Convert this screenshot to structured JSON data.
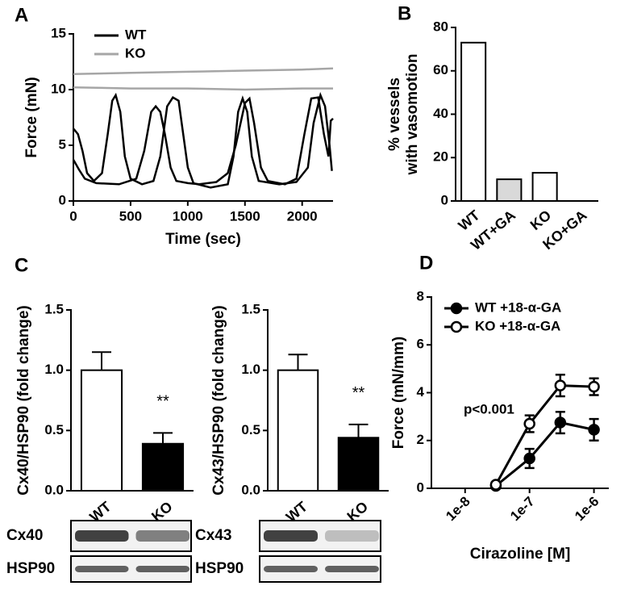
{
  "chart_data": [
    {
      "type": "line",
      "panel_label": "A",
      "xlabel": "Time (sec)",
      "ylabel": "Force (mN)",
      "xlim": [
        0,
        2270
      ],
      "xticks": [
        0,
        500,
        1000,
        1500,
        2000
      ],
      "ylim": [
        0,
        15
      ],
      "yticks": [
        0,
        5,
        10,
        15
      ],
      "legend": "top-left",
      "series": [
        {
          "name": "WT",
          "color": "#000000",
          "x": [
            0,
            40,
            80,
            120,
            180,
            250,
            300,
            340,
            370,
            410,
            450,
            500,
            600,
            700,
            760,
            820,
            870,
            920,
            960,
            1000,
            1050,
            1200,
            1350,
            1400,
            1440,
            1480,
            1520,
            1560,
            1620,
            1800,
            1950,
            2050,
            2100,
            2160,
            2200,
            2240,
            2260
          ],
          "values": [
            6.5,
            6,
            4.5,
            2.5,
            1.8,
            2.5,
            6,
            9,
            9.5,
            8,
            4,
            2,
            1.5,
            1.8,
            4,
            8.5,
            9.3,
            9,
            6,
            3,
            1.6,
            1.2,
            1.5,
            4,
            8,
            9.2,
            8,
            4,
            1.8,
            1.5,
            1.7,
            3,
            7,
            9.5,
            8.5,
            5,
            2.7
          ]
        },
        {
          "color": "#000000",
          "x": [
            0,
            50,
            100,
            200,
            400,
            550,
            620,
            680,
            720,
            760,
            800,
            850,
            900,
            1000,
            1100,
            1250,
            1350,
            1420,
            1500,
            1540,
            1580,
            1640,
            1700,
            1850,
            1950,
            2020,
            2080,
            2140,
            2190,
            2230,
            2250,
            2270
          ],
          "values": [
            3.7,
            2.8,
            2,
            1.6,
            1.5,
            2,
            4.5,
            8,
            8.5,
            8,
            6,
            3,
            1.8,
            1.6,
            1.5,
            1.7,
            2.5,
            5,
            8.8,
            9.2,
            7,
            3,
            1.8,
            1.5,
            2,
            6,
            9.2,
            9.3,
            6,
            4,
            7.2,
            7.4
          ]
        },
        {
          "name": "KO",
          "color": "#a6a6a6",
          "x": [
            0,
            500,
            1000,
            1500,
            2000,
            2270
          ],
          "values": [
            11.4,
            11.5,
            11.6,
            11.7,
            11.8,
            11.9
          ]
        },
        {
          "color": "#a6a6a6",
          "x": [
            0,
            500,
            1000,
            1500,
            2000,
            2270
          ],
          "values": [
            10.2,
            10.1,
            10.1,
            10,
            10.1,
            10.1
          ]
        }
      ]
    },
    {
      "type": "bar",
      "panel_label": "B",
      "ylabel": [
        "% vessels",
        "with vasomotion"
      ],
      "categories": [
        "WT",
        "WT+GA",
        "KO",
        "KO+GA"
      ],
      "values": [
        73,
        10,
        13,
        0
      ],
      "colors": [
        "#ffffff",
        "#d9d9d9",
        "#ffffff",
        "#ffffff"
      ],
      "ylim": [
        0,
        80
      ],
      "yticks": [
        0,
        20,
        40,
        60,
        80
      ]
    },
    {
      "type": "bar",
      "panel_label": "C",
      "ylabel": "Cx40/HSP90 (fold change)",
      "categories": [
        "WT",
        "KO"
      ],
      "values": [
        1.0,
        0.39
      ],
      "errors": [
        0.15,
        0.09
      ],
      "colors": [
        "#ffffff",
        "#000000"
      ],
      "annotation": "**",
      "ylim": [
        0,
        1.5
      ],
      "yticks": [
        {
          "value": 0,
          "label": "0.0"
        },
        0.5,
        {
          "value": 1,
          "label": "1.0"
        },
        1.5
      ],
      "blots": [
        "Cx40",
        "HSP90"
      ]
    },
    {
      "type": "bar",
      "ylabel": "Cx43/HSP90 (fold change)",
      "categories": [
        "WT",
        "KO"
      ],
      "values": [
        1.0,
        0.44
      ],
      "errors": [
        0.13,
        0.11
      ],
      "colors": [
        "#ffffff",
        "#000000"
      ],
      "annotation": "**",
      "ylim": [
        0,
        1.5
      ],
      "yticks": [
        {
          "value": 0,
          "label": "0.0"
        },
        0.5,
        {
          "value": 1,
          "label": "1.0"
        },
        1.5
      ],
      "blots": [
        "Cx43",
        "HSP90"
      ]
    },
    {
      "type": "line",
      "panel_label": "D",
      "xlabel": "Cirazoline [M]",
      "ylabel": "Force (mN/mm)",
      "xscale": "log",
      "xlim": [
        3e-09,
        1.7e-06
      ],
      "xticks": [
        {
          "value": 1e-08,
          "label": "1e-8"
        },
        {
          "value": 1e-07,
          "label": "1e-7"
        },
        {
          "value": 1e-06,
          "label": "1e-6"
        }
      ],
      "ylim": [
        0,
        8
      ],
      "yticks": [
        0,
        2,
        4,
        6,
        8
      ],
      "legend": "top-left",
      "annotation": "p<0.001",
      "series": [
        {
          "name": "WT +18-α-GA",
          "color": "#000000",
          "marker_fill": "#000000",
          "x": [
            3e-08,
            1e-07,
            3e-07,
            1e-06
          ],
          "values": [
            0.1,
            1.25,
            2.75,
            2.45
          ],
          "errors": [
            0.1,
            0.4,
            0.45,
            0.45
          ]
        },
        {
          "name": "KO +18-α-GA",
          "color": "#000000",
          "marker_fill": "#ffffff",
          "x": [
            3e-08,
            1e-07,
            3e-07,
            1e-06
          ],
          "values": [
            0.15,
            2.7,
            4.3,
            4.25
          ],
          "errors": [
            0.1,
            0.35,
            0.45,
            0.35
          ]
        }
      ]
    }
  ]
}
